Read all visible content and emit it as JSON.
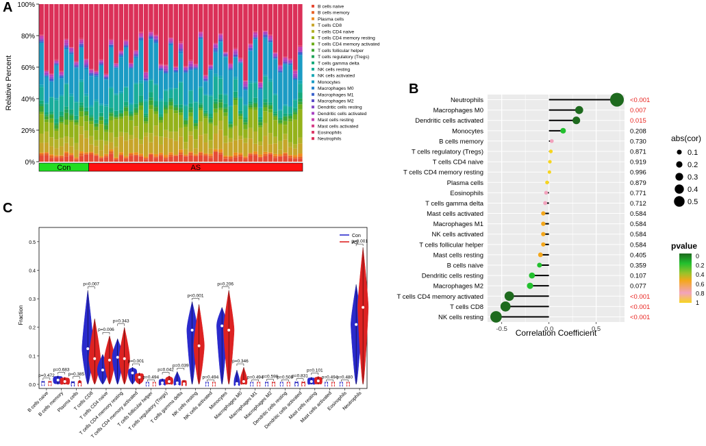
{
  "panel_letters": {
    "a": "A",
    "b": "B",
    "c": "C"
  },
  "colors": {
    "con": "#2a2acc",
    "as": "#dd2222",
    "con_bar": "#22dd22",
    "as_bar": "#ff1111",
    "sig_red": "#e8231f",
    "panel_bg": "#ebebeb"
  },
  "chart_data": [
    {
      "id": "A",
      "type": "bar",
      "stacked": true,
      "ylabel": "Relative Percent",
      "yticks": [
        "0%",
        "20%",
        "40%",
        "60%",
        "80%",
        "100%"
      ],
      "groups": [
        {
          "label": "Con",
          "count": 10,
          "color": "#22dd22"
        },
        {
          "label": "AS",
          "count": 43,
          "color": "#ff1111"
        }
      ],
      "n_samples": 53,
      "legend": [
        {
          "name": "B cells naive",
          "color": "#e64b35",
          "mean": 3.0
        },
        {
          "name": "B cells memory",
          "color": "#e7652a",
          "mean": 1.0
        },
        {
          "name": "Plasma cells",
          "color": "#ef8a1e",
          "mean": 1.0
        },
        {
          "name": "T cells CD8",
          "color": "#c7a52a",
          "mean": 7.0
        },
        {
          "name": "T cells CD4 naive",
          "color": "#b3b128",
          "mean": 5.0
        },
        {
          "name": "T cells CD4 memory resting",
          "color": "#94b21a",
          "mean": 10.0
        },
        {
          "name": "T cells CD4 memory activated",
          "color": "#6cae1c",
          "mean": 2.0
        },
        {
          "name": "T cells follicular helper",
          "color": "#3ba534",
          "mean": 2.0
        },
        {
          "name": "T cells regulatory (Tregs)",
          "color": "#22a45a",
          "mean": 1.0
        },
        {
          "name": "T cells gamma delta",
          "color": "#14a97a",
          "mean": 2.0
        },
        {
          "name": "NK cells resting",
          "color": "#19ad9b",
          "mean": 9.0
        },
        {
          "name": "NK cells activated",
          "color": "#1aa8b5",
          "mean": 1.0
        },
        {
          "name": "Monocytes",
          "color": "#1b9bc4",
          "mean": 18.0
        },
        {
          "name": "Macrophages M0",
          "color": "#1f7fcc",
          "mean": 0.6
        },
        {
          "name": "Macrophages M1",
          "color": "#3b63cc",
          "mean": 0.6
        },
        {
          "name": "Macrophages M2",
          "color": "#5b4fc8",
          "mean": 0.6
        },
        {
          "name": "Dendritic cells resting",
          "color": "#8448c6",
          "mean": 0.5
        },
        {
          "name": "Dendritic cells activated",
          "color": "#a843c2",
          "mean": 1.0
        },
        {
          "name": "Mast cells resting",
          "color": "#c53fb0",
          "mean": 1.0
        },
        {
          "name": "Mast cells activated",
          "color": "#d63c86",
          "mean": 0.3
        },
        {
          "name": "Eosinophils",
          "color": "#dc3a68",
          "mean": 0.5
        },
        {
          "name": "Neutrophils",
          "color": "#db3058",
          "mean": 31.0
        }
      ]
    },
    {
      "id": "B",
      "type": "scatter",
      "subtype": "lollipop",
      "xlabel": "Correlation Coefficient",
      "xlim": [
        -0.65,
        0.8
      ],
      "xticks": [
        -0.5,
        0.0,
        0.5
      ],
      "xtick_labels": [
        "-0.5",
        "0.0",
        "0.5"
      ],
      "size_legend_title": "abs(cor)",
      "size_legend": [
        "0.1",
        "0.2",
        "0.3",
        "0.4",
        "0.5"
      ],
      "color_legend_title": "pvalue",
      "color_legend": [
        "0",
        "0.2",
        "0.4",
        "0.6",
        "0.8",
        "1"
      ],
      "rows": [
        {
          "name": "Neutrophils",
          "cor": 0.72,
          "p": 0.0005,
          "p_label": "<0.001",
          "sig": true
        },
        {
          "name": "Macrophages M0",
          "cor": 0.32,
          "p": 0.007,
          "p_label": "0.007",
          "sig": true
        },
        {
          "name": "Dendritic cells activated",
          "cor": 0.29,
          "p": 0.015,
          "p_label": "0.015",
          "sig": true
        },
        {
          "name": "Monocytes",
          "cor": 0.15,
          "p": 0.208,
          "p_label": "0.208",
          "sig": false
        },
        {
          "name": "B cells memory",
          "cor": 0.03,
          "p": 0.73,
          "p_label": "0.730",
          "sig": false
        },
        {
          "name": "T cells regulatory (Tregs)",
          "cor": 0.02,
          "p": 0.871,
          "p_label": "0.871",
          "sig": false
        },
        {
          "name": "T cells CD4 naive",
          "cor": 0.01,
          "p": 0.919,
          "p_label": "0.919",
          "sig": false
        },
        {
          "name": "T cells CD4 memory resting",
          "cor": 0.005,
          "p": 0.996,
          "p_label": "0.996",
          "sig": false
        },
        {
          "name": "Plasma cells",
          "cor": -0.02,
          "p": 0.879,
          "p_label": "0.879",
          "sig": false
        },
        {
          "name": "Eosinophils",
          "cor": -0.03,
          "p": 0.771,
          "p_label": "0.771",
          "sig": false
        },
        {
          "name": "T cells gamma delta",
          "cor": -0.04,
          "p": 0.712,
          "p_label": "0.712",
          "sig": false
        },
        {
          "name": "Mast cells activated",
          "cor": -0.06,
          "p": 0.584,
          "p_label": "0.584",
          "sig": false
        },
        {
          "name": "Macrophages M1",
          "cor": -0.06,
          "p": 0.584,
          "p_label": "0.584",
          "sig": false
        },
        {
          "name": "NK cells activated",
          "cor": -0.06,
          "p": 0.584,
          "p_label": "0.584",
          "sig": false
        },
        {
          "name": "T cells follicular helper",
          "cor": -0.06,
          "p": 0.584,
          "p_label": "0.584",
          "sig": false
        },
        {
          "name": "Mast cells resting",
          "cor": -0.09,
          "p": 0.405,
          "p_label": "0.405",
          "sig": false
        },
        {
          "name": "B cells naive",
          "cor": -0.1,
          "p": 0.359,
          "p_label": "0.359",
          "sig": false
        },
        {
          "name": "Dendritic cells resting",
          "cor": -0.18,
          "p": 0.107,
          "p_label": "0.107",
          "sig": false
        },
        {
          "name": "Macrophages M2",
          "cor": -0.2,
          "p": 0.077,
          "p_label": "0.077",
          "sig": false
        },
        {
          "name": "T cells CD4 memory activated",
          "cor": -0.42,
          "p": 0.0005,
          "p_label": "<0.001",
          "sig": true
        },
        {
          "name": "T cells CD8",
          "cor": -0.46,
          "p": 0.0005,
          "p_label": "<0.001",
          "sig": true
        },
        {
          "name": "NK cells resting",
          "cor": -0.56,
          "p": 0.0005,
          "p_label": "<0.001",
          "sig": true
        }
      ]
    },
    {
      "id": "C",
      "type": "violin",
      "ylabel": "Fraction",
      "ylim": [
        0,
        0.55
      ],
      "yticks": [
        0.0,
        0.1,
        0.2,
        0.3,
        0.4,
        0.5
      ],
      "ytick_labels": [
        "0.0",
        "0.1",
        "0.2",
        "0.3",
        "0.4",
        "0.5"
      ],
      "legend": [
        {
          "name": "Con",
          "color": "#2a2acc"
        },
        {
          "name": "AS",
          "color": "#dd2222"
        }
      ],
      "cells": [
        {
          "name": "B cells naive",
          "p": "p=0.472",
          "con": {
            "med": 0.002,
            "max": 0.01,
            "w": 0.1
          },
          "as": {
            "med": 0.002,
            "max": 0.01,
            "w": 0.1
          }
        },
        {
          "name": "B cells memory",
          "p": "p=0.683",
          "con": {
            "med": 0.015,
            "max": 0.03,
            "w": 0.8
          },
          "as": {
            "med": 0.01,
            "max": 0.025,
            "w": 0.8
          }
        },
        {
          "name": "Plasma cells",
          "p": "p=0.385",
          "con": {
            "med": 0.0,
            "max": 0.01,
            "w": 0.15
          },
          "as": {
            "med": 0.0,
            "max": 0.015,
            "w": 0.15
          }
        },
        {
          "name": "T cells CD8",
          "p": "p=0.007",
          "con": {
            "med": 0.125,
            "max": 0.33,
            "w": 1.0
          },
          "as": {
            "med": 0.09,
            "max": 0.23,
            "w": 1.0
          }
        },
        {
          "name": "T cells CD4 naive",
          "p": "p=0.006",
          "con": {
            "med": 0.05,
            "max": 0.105,
            "w": 0.9
          },
          "as": {
            "med": 0.085,
            "max": 0.17,
            "w": 0.9
          }
        },
        {
          "name": "T cells CD4 memory resting",
          "p": "p=0.343",
          "con": {
            "med": 0.095,
            "max": 0.16,
            "w": 0.9
          },
          "as": {
            "med": 0.09,
            "max": 0.2,
            "w": 0.9
          }
        },
        {
          "name": "T cells CD4 memory activated",
          "p": "p=0.001",
          "con": {
            "med": 0.04,
            "max": 0.06,
            "w": 0.7
          },
          "as": {
            "med": 0.025,
            "max": 0.04,
            "w": 0.7
          }
        },
        {
          "name": "T cells follicular helper",
          "p": "p=0.494",
          "con": {
            "med": 0.0,
            "max": 0.004,
            "w": 0.1
          },
          "as": {
            "med": 0.0,
            "max": 0.004,
            "w": 0.1
          }
        },
        {
          "name": "T cells regulatory (Tregs)",
          "p": "p=0.042",
          "con": {
            "med": 0.005,
            "max": 0.02,
            "w": 0.5
          },
          "as": {
            "med": 0.01,
            "max": 0.03,
            "w": 0.6
          }
        },
        {
          "name": "T cells gamma delta",
          "p": "p=0.039",
          "con": {
            "med": 0.005,
            "max": 0.045,
            "w": 0.5
          },
          "as": {
            "med": 0.002,
            "max": 0.015,
            "w": 0.3
          }
        },
        {
          "name": "NK cells resting",
          "p": "p<0.001",
          "con": {
            "med": 0.19,
            "max": 0.29,
            "w": 0.9
          },
          "as": {
            "med": 0.135,
            "max": 0.28,
            "w": 0.9
          }
        },
        {
          "name": "NK cells activated",
          "p": "p=0.494",
          "con": {
            "med": 0.0,
            "max": 0.004,
            "w": 0.1
          },
          "as": {
            "med": 0.0,
            "max": 0.004,
            "w": 0.1
          }
        },
        {
          "name": "Monocytes",
          "p": "p=0.206",
          "con": {
            "med": 0.205,
            "max": 0.27,
            "w": 0.9
          },
          "as": {
            "med": 0.19,
            "max": 0.33,
            "w": 0.9
          }
        },
        {
          "name": "Macrophages M0",
          "p": "p=0.346",
          "con": {
            "med": 0.003,
            "max": 0.05,
            "w": 0.4
          },
          "as": {
            "med": 0.01,
            "max": 0.06,
            "w": 0.5
          }
        },
        {
          "name": "Macrophages M1",
          "p": "p=0.494",
          "con": {
            "med": 0.0,
            "max": 0.004,
            "w": 0.1
          },
          "as": {
            "med": 0.0,
            "max": 0.004,
            "w": 0.1
          }
        },
        {
          "name": "Macrophages M2",
          "p": "p=0.598",
          "con": {
            "med": 0.0,
            "max": 0.006,
            "w": 0.1
          },
          "as": {
            "med": 0.0,
            "max": 0.006,
            "w": 0.1
          }
        },
        {
          "name": "Dendritic cells resting",
          "p": "p=0.508",
          "con": {
            "med": 0.0,
            "max": 0.004,
            "w": 0.1
          },
          "as": {
            "med": 0.0,
            "max": 0.004,
            "w": 0.1
          }
        },
        {
          "name": "Dendritic cells activated",
          "p": "p=0.831",
          "con": {
            "med": 0.0,
            "max": 0.008,
            "w": 0.15
          },
          "as": {
            "med": 0.0,
            "max": 0.008,
            "w": 0.15
          }
        },
        {
          "name": "Mast cells resting",
          "p": "p=0.101",
          "con": {
            "med": 0.01,
            "max": 0.025,
            "w": 0.6
          },
          "as": {
            "med": 0.012,
            "max": 0.028,
            "w": 0.6
          }
        },
        {
          "name": "Mast cells activated",
          "p": "p=0.494",
          "con": {
            "med": 0.0,
            "max": 0.004,
            "w": 0.1
          },
          "as": {
            "med": 0.0,
            "max": 0.004,
            "w": 0.1
          }
        },
        {
          "name": "Eosinophils",
          "p": "p=0.480",
          "con": {
            "med": 0.0,
            "max": 0.004,
            "w": 0.1
          },
          "as": {
            "med": 0.0,
            "max": 0.004,
            "w": 0.1
          }
        },
        {
          "name": "Neutrophils",
          "p": "p=0.001",
          "con": {
            "med": 0.21,
            "max": 0.35,
            "w": 0.9
          },
          "as": {
            "med": 0.27,
            "max": 0.48,
            "w": 0.9
          }
        }
      ]
    }
  ]
}
